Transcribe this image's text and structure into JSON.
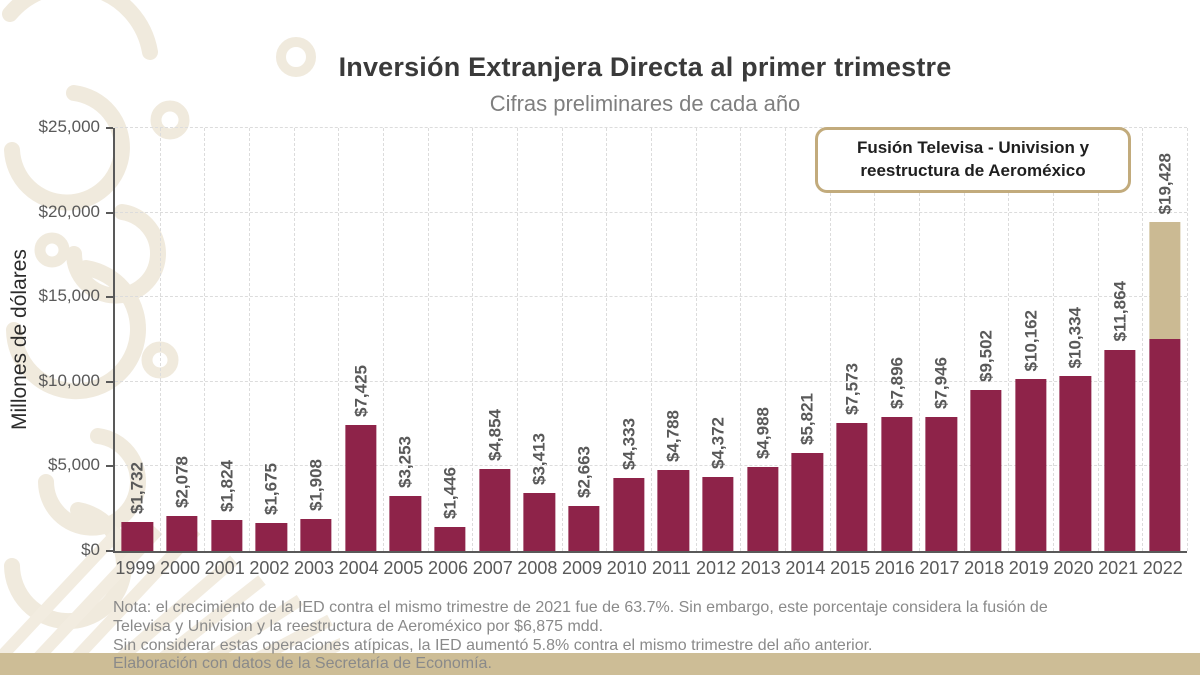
{
  "title": "Inversión Extranjera Directa al primer trimestre",
  "subtitle": "Cifras preliminares de cada año",
  "legend_box": {
    "line1": "Fusión Televisa - Univision y",
    "line2": "reestructura de Aeroméxico"
  },
  "chart_data": {
    "type": "bar",
    "title": "Inversión Extranjera Directa al primer trimestre",
    "subtitle": "Cifras preliminares de cada año",
    "ylabel": "Millones de dólares",
    "xlabel": "",
    "ylim": [
      0,
      25000
    ],
    "ytick_interval": 5000,
    "ytick_labels": [
      "$0",
      "$5,000",
      "$10,000",
      "$15,000",
      "$20,000",
      "$25,000"
    ],
    "grid": "dashed, horizontal and vertical",
    "legend_position": "top-right box",
    "categories": [
      "1999",
      "2000",
      "2001",
      "2002",
      "2003",
      "2004",
      "2005",
      "2006",
      "2007",
      "2008",
      "2009",
      "2010",
      "2011",
      "2012",
      "2013",
      "2014",
      "2015",
      "2016",
      "2017",
      "2018",
      "2019",
      "2020",
      "2021",
      "2022"
    ],
    "values_total": [
      1732,
      2078,
      1824,
      1675,
      1908,
      7425,
      3253,
      1446,
      4854,
      3413,
      2663,
      4333,
      4788,
      4372,
      4988,
      5821,
      7573,
      7896,
      7946,
      9502,
      10162,
      10334,
      11864,
      19428
    ],
    "labels": [
      "$1,732",
      "$2,078",
      "$1,824",
      "$1,675",
      "$1,908",
      "$7,425",
      "$3,253",
      "$1,446",
      "$4,854",
      "$3,413",
      "$2,663",
      "$4,333",
      "$4,788",
      "$4,372",
      "$4,988",
      "$5,821",
      "$7,573",
      "$7,896",
      "$7,946",
      "$9,502",
      "$10,162",
      "$10,334",
      "$11,864",
      "$19,428"
    ],
    "atypical_segment": {
      "year": "2022",
      "value": 6875,
      "label": "Fusión Televisa - Univision y reestructura de Aeroméxico"
    }
  },
  "note": {
    "line1": "Nota: el crecimiento de la IED contra el mismo trimestre de 2021 fue de 63.7%. Sin embargo, este porcentaje considera la fusión de",
    "line2": "Televisa y Univision y la reestructura de Aeroméxico por $6,875 mdd.",
    "line3": "Sin considerar estas operaciones atípicas, la IED aumentó 5.8% contra el mismo trimestre del año anterior."
  },
  "source": "Elaboración con datos de la Secretaría de Economía.",
  "colors": {
    "bar": "#8e2349",
    "atypical": "#cbba93",
    "band": "#cdbd96",
    "legend_border": "#c2ab7c",
    "axis": "#595959",
    "grid": "#dcdcdc",
    "watermark": "#f0eadd"
  }
}
